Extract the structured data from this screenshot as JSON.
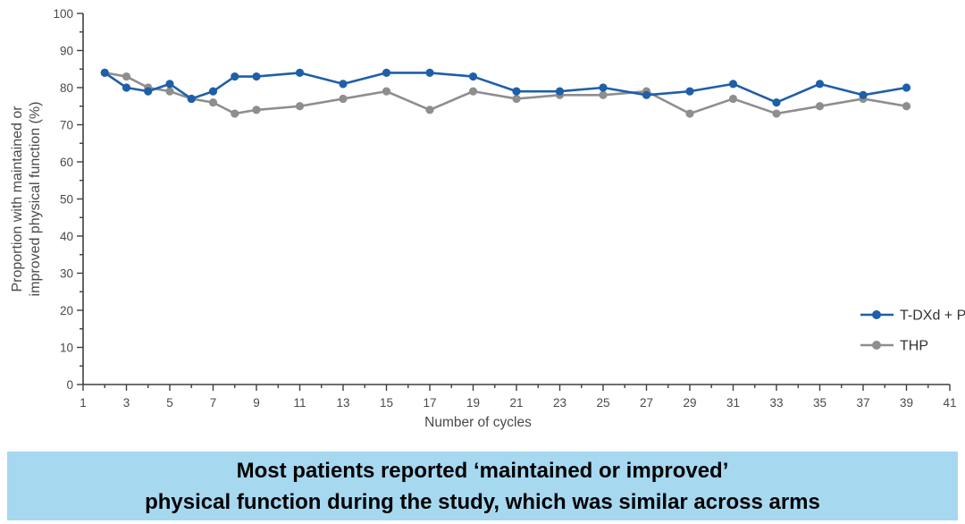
{
  "chart_data": {
    "type": "line",
    "x": [
      2,
      3,
      4,
      5,
      6,
      7,
      8,
      9,
      11,
      13,
      15,
      17,
      19,
      21,
      23,
      25,
      27,
      29,
      31,
      33,
      35,
      37,
      39
    ],
    "series": [
      {
        "name": "T-DXd + P",
        "color": "#1f5fa8",
        "values": [
          84,
          80,
          79,
          81,
          77,
          79,
          83,
          83,
          84,
          81,
          84,
          84,
          83,
          79,
          79,
          80,
          78,
          79,
          81,
          76,
          81,
          78,
          80
        ]
      },
      {
        "name": "THP",
        "color": "#8e8e8e",
        "values": [
          84,
          83,
          80,
          79,
          77,
          76,
          73,
          74,
          75,
          77,
          79,
          74,
          79,
          77,
          78,
          78,
          79,
          73,
          77,
          73,
          75,
          77,
          75
        ]
      }
    ],
    "title": "",
    "xlabel": "Number of cycles",
    "ylabel_lines": [
      "Proportion with maintained or",
      "improved physical function (%)"
    ],
    "xlim": [
      1,
      41
    ],
    "xtick_labels": [
      1,
      3,
      5,
      7,
      9,
      11,
      13,
      15,
      17,
      19,
      21,
      23,
      25,
      27,
      29,
      31,
      33,
      35,
      37,
      39,
      41
    ],
    "ylim": [
      0,
      100
    ],
    "ytick_step": 10,
    "grid": "off",
    "legend_position": "right-lower"
  },
  "colors": {
    "axis": "#3f3f3f",
    "tick_text": "#4a4a4a",
    "legend_text": "#333333",
    "caption_bg": "#a6d8f0",
    "caption_text": "#000000"
  },
  "caption": {
    "line1": "Most patients reported ‘maintained or improved’",
    "line2": "physical function during the study, which was similar across arms"
  }
}
